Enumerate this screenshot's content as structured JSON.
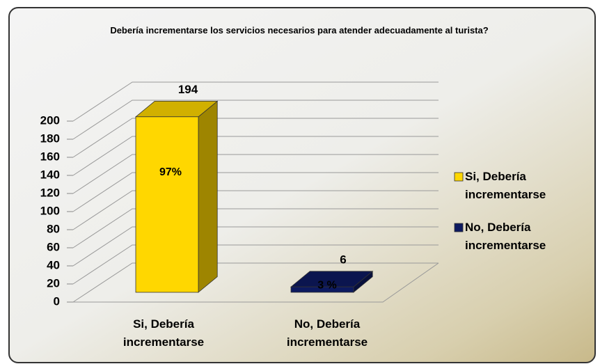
{
  "chart_data": {
    "type": "bar3d",
    "title": "Debería incrementarse los servicios necesarios para atender adecuadamente al turista?",
    "categories": [
      "Si, Debería incrementarse",
      "No, Debería incrementarse"
    ],
    "values": [
      194,
      6
    ],
    "percent_labels": [
      "97%",
      "3 %"
    ],
    "colors": [
      "#ffd700",
      "#0d1a60"
    ],
    "ylim": [
      0,
      200
    ],
    "yticks": [
      0,
      20,
      40,
      60,
      80,
      100,
      120,
      140,
      160,
      180,
      200
    ],
    "grid": true,
    "legend": "right"
  }
}
